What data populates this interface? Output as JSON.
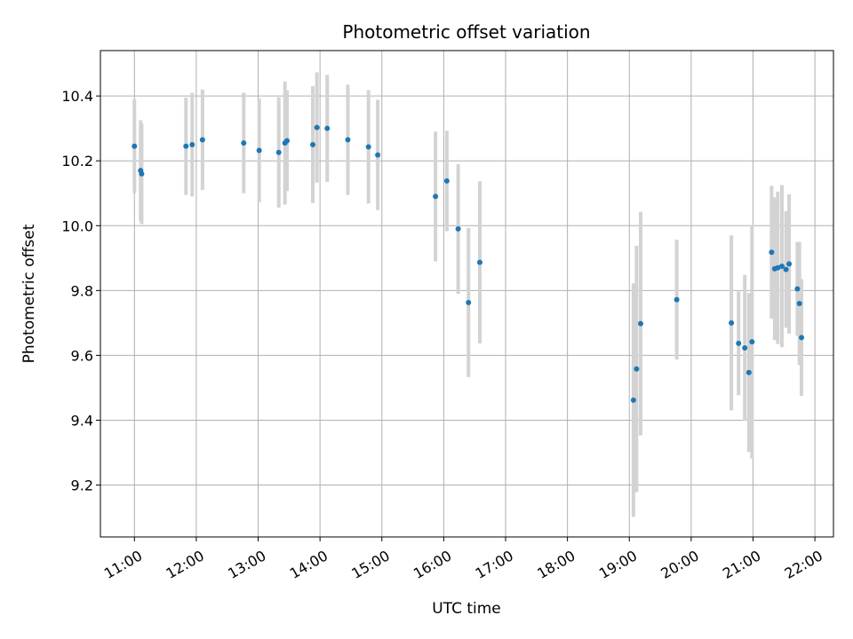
{
  "chart_data": {
    "type": "scatter",
    "title": "Photometric offset variation",
    "xlabel": "UTC time",
    "ylabel": "Photometric offset",
    "x_axis_kind": "time",
    "xlim": [
      "10:27",
      "22:18"
    ],
    "ylim": [
      9.04,
      10.54
    ],
    "grid": true,
    "x_ticks": [
      "11:00",
      "12:00",
      "13:00",
      "14:00",
      "15:00",
      "16:00",
      "17:00",
      "18:00",
      "19:00",
      "20:00",
      "21:00",
      "22:00"
    ],
    "y_ticks": [
      9.2,
      9.4,
      9.6,
      9.8,
      10.0,
      10.2,
      10.4
    ],
    "y_tick_labels": [
      "9.2",
      "9.4",
      "9.6",
      "9.8",
      "10.0",
      "10.2",
      "10.4"
    ],
    "colors": {
      "points": "#1f77b4",
      "error_bars": "#d3d3d3",
      "grid": "#b0b0b0"
    },
    "series": [
      {
        "points": [
          {
            "x": "11:00",
            "y": 10.245,
            "err": 0.145
          },
          {
            "x": "11:06",
            "y": 10.17,
            "err": 0.155
          },
          {
            "x": "11:07",
            "y": 10.16,
            "err": 0.155
          },
          {
            "x": "11:50",
            "y": 10.245,
            "err": 0.15
          },
          {
            "x": "11:56",
            "y": 10.25,
            "err": 0.16
          },
          {
            "x": "12:06",
            "y": 10.265,
            "err": 0.155
          },
          {
            "x": "12:46",
            "y": 10.255,
            "err": 0.155
          },
          {
            "x": "13:01",
            "y": 10.232,
            "err": 0.16
          },
          {
            "x": "13:20",
            "y": 10.226,
            "err": 0.17
          },
          {
            "x": "13:26",
            "y": 10.255,
            "err": 0.19
          },
          {
            "x": "13:28",
            "y": 10.262,
            "err": 0.155
          },
          {
            "x": "13:53",
            "y": 10.25,
            "err": 0.18
          },
          {
            "x": "13:57",
            "y": 10.303,
            "err": 0.17
          },
          {
            "x": "14:07",
            "y": 10.3,
            "err": 0.165
          },
          {
            "x": "14:27",
            "y": 10.265,
            "err": 0.17
          },
          {
            "x": "14:47",
            "y": 10.243,
            "err": 0.175
          },
          {
            "x": "14:56",
            "y": 10.218,
            "err": 0.17
          },
          {
            "x": "15:52",
            "y": 10.09,
            "err": 0.2
          },
          {
            "x": "16:03",
            "y": 10.138,
            "err": 0.155
          },
          {
            "x": "16:14",
            "y": 9.99,
            "err": 0.2
          },
          {
            "x": "16:24",
            "y": 9.763,
            "err": 0.23
          },
          {
            "x": "16:35",
            "y": 9.887,
            "err": 0.25
          },
          {
            "x": "19:04",
            "y": 9.462,
            "err": 0.36
          },
          {
            "x": "19:07",
            "y": 9.558,
            "err": 0.38
          },
          {
            "x": "19:11",
            "y": 9.698,
            "err": 0.345
          },
          {
            "x": "19:46",
            "y": 9.772,
            "err": 0.185
          },
          {
            "x": "20:39",
            "y": 9.7,
            "err": 0.27
          },
          {
            "x": "20:46",
            "y": 9.637,
            "err": 0.16
          },
          {
            "x": "20:52",
            "y": 9.623,
            "err": 0.225
          },
          {
            "x": "20:56",
            "y": 9.547,
            "err": 0.245
          },
          {
            "x": "20:59",
            "y": 9.642,
            "err": 0.36
          },
          {
            "x": "21:18",
            "y": 9.918,
            "err": 0.205
          },
          {
            "x": "21:21",
            "y": 9.867,
            "err": 0.22
          },
          {
            "x": "21:24",
            "y": 9.87,
            "err": 0.235
          },
          {
            "x": "21:28",
            "y": 9.875,
            "err": 0.25
          },
          {
            "x": "21:32",
            "y": 9.865,
            "err": 0.18
          },
          {
            "x": "21:35",
            "y": 9.882,
            "err": 0.215
          },
          {
            "x": "21:43",
            "y": 9.805,
            "err": 0.145
          },
          {
            "x": "21:45",
            "y": 9.76,
            "err": 0.19
          },
          {
            "x": "21:47",
            "y": 9.655,
            "err": 0.18
          }
        ]
      }
    ]
  }
}
